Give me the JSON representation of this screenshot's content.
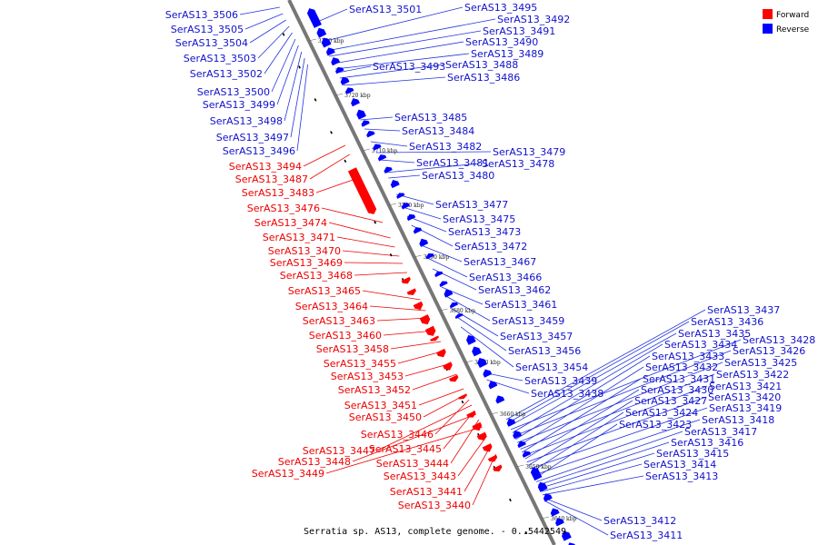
{
  "caption": "Serratia sp. AS13, complete genome. - 0..5442549",
  "legend": [
    {
      "label": "Forward",
      "color": "#ff0000"
    },
    {
      "label": "Reverse",
      "color": "#0000ff"
    }
  ],
  "scale_ticks": [
    "3730 kbp",
    "3720 kbp",
    "3710 kbp",
    "3700 kbp",
    "3690 kbp",
    "3680 kbp",
    "3670 kbp",
    "3660 kbp",
    "3650 kbp",
    "3640 kbp"
  ],
  "left_blue_labels": [
    "SerAS13_3506",
    "SerAS13_3505",
    "SerAS13_3504",
    "SerAS13_3503",
    "SerAS13_3502",
    "SerAS13_3500",
    "SerAS13_3499",
    "SerAS13_3498",
    "SerAS13_3497",
    "SerAS13_3496"
  ],
  "left_red_labels": [
    "SerAS13_3494",
    "SerAS13_3487",
    "SerAS13_3483",
    "SerAS13_3476",
    "SerAS13_3474",
    "SerAS13_3471",
    "SerAS13_3470",
    "SerAS13_3469",
    "SerAS13_3468",
    "SerAS13_3465",
    "SerAS13_3464",
    "SerAS13_3463",
    "SerAS13_3460",
    "SerAS13_3458",
    "SerAS13_3455",
    "SerAS13_3453",
    "SerAS13_3452",
    "SerAS13_3451",
    "SerAS13_3450",
    "SerAS13_3446",
    "SerAS13_3447",
    "SerAS13_3445",
    "SerAS13_3448",
    "SerAS13_3444",
    "SerAS13_3449",
    "SerAS13_3443",
    "SerAS13_3441",
    "SerAS13_3440"
  ],
  "right_blue_labels_upper": [
    "SerAS13_3501",
    "SerAS13_3495",
    "SerAS13_3492",
    "SerAS13_3491",
    "SerAS13_3490",
    "SerAS13_3489",
    "SerAS13_3493",
    "SerAS13_3488",
    "SerAS13_3486",
    "SerAS13_3485",
    "SerAS13_3484",
    "SerAS13_3482",
    "SerAS13_3479",
    "SerAS13_3481",
    "SerAS13_3478",
    "SerAS13_3480",
    "SerAS13_3477",
    "SerAS13_3475",
    "SerAS13_3473",
    "SerAS13_3472",
    "SerAS13_3467",
    "SerAS13_3466",
    "SerAS13_3462",
    "SerAS13_3461",
    "SerAS13_3459",
    "SerAS13_3457",
    "SerAS13_3456",
    "SerAS13_3454",
    "SerAS13_3439",
    "SerAS13_3438"
  ],
  "right_blue_labels_lower": [
    "SerAS13_3437",
    "SerAS13_3436",
    "SerAS13_3435",
    "SerAS13_3428",
    "SerAS13_3434",
    "SerAS13_3426",
    "SerAS13_3433",
    "SerAS13_3425",
    "SerAS13_3432",
    "SerAS13_3422",
    "SerAS13_3431",
    "SerAS13_3421",
    "SerAS13_3430",
    "SerAS13_3420",
    "SerAS13_3427",
    "SerAS13_3419",
    "SerAS13_3424",
    "SerAS13_3418",
    "SerAS13_3423",
    "SerAS13_3417",
    "SerAS13_3416",
    "SerAS13_3415",
    "SerAS13_3414",
    "SerAS13_3413",
    "SerAS13_3412",
    "SerAS13_3411"
  ]
}
